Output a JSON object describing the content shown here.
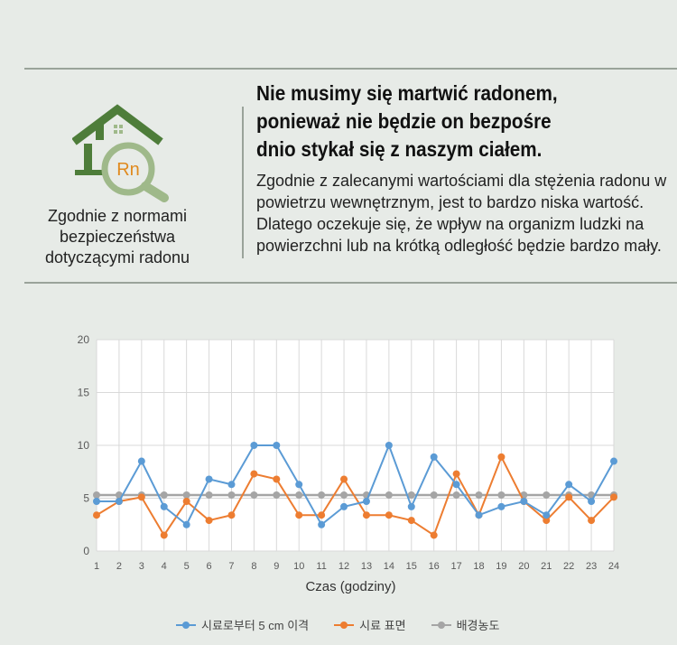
{
  "badge": {
    "icon_text": "Rn",
    "caption_lines": [
      "Zgodnie z normami",
      "bezpieczeństwa",
      "dotyczącymi radonu"
    ]
  },
  "headline": {
    "lines": [
      "Nie musimy się martwić radonem,",
      "ponieważ nie będzie on bezpośre",
      "dnio stykał się z naszym ciałem."
    ]
  },
  "body_text": "Zgodnie z zalecanymi wartościami dla stężenia radonu w powietrzu wewnętrznym, jest to bardzo niska wartość. Dlatego oczekuje się, że wpływ na organizm ludzki na powierzchni lub na krótką odległość będzie bardzo mały.",
  "colors": {
    "blue": "#5b9bd5",
    "orange": "#ed7d31",
    "gray": "#a5a5a5",
    "house_green": "#4e7d3a",
    "magnifier_green": "#9fb98a",
    "rn_orange": "#e08a1e"
  },
  "chart_data": {
    "type": "line",
    "x": [
      1,
      2,
      3,
      4,
      5,
      6,
      7,
      8,
      9,
      10,
      11,
      12,
      13,
      14,
      15,
      16,
      17,
      18,
      19,
      20,
      21,
      22,
      23,
      24
    ],
    "xlabel": "Czas (godziny)",
    "ylabel": "",
    "ylim": [
      0,
      20
    ],
    "yticks": [
      0,
      5,
      10,
      15,
      20
    ],
    "grid": true,
    "legend_position": "bottom",
    "series": [
      {
        "name": "시료로부터 5 cm 이격",
        "color": "#5b9bd5",
        "values": [
          4.7,
          4.7,
          8.5,
          4.2,
          2.5,
          6.8,
          6.3,
          10,
          10,
          6.3,
          2.5,
          4.2,
          4.7,
          10,
          4.2,
          8.9,
          6.3,
          3.4,
          4.2,
          4.7,
          3.4,
          6.3,
          4.7,
          8.5
        ]
      },
      {
        "name": "시료 표면",
        "color": "#ed7d31",
        "values": [
          3.4,
          4.7,
          5.1,
          1.5,
          4.7,
          2.9,
          3.4,
          7.3,
          6.8,
          3.4,
          3.4,
          6.8,
          3.4,
          3.4,
          2.9,
          1.5,
          7.3,
          3.4,
          8.9,
          4.7,
          2.9,
          5.1,
          2.9,
          5.1
        ]
      },
      {
        "name": "배경농도",
        "color": "#a5a5a5",
        "values": [
          5.3,
          5.3,
          5.3,
          5.3,
          5.3,
          5.3,
          5.3,
          5.3,
          5.3,
          5.3,
          5.3,
          5.3,
          5.3,
          5.3,
          5.3,
          5.3,
          5.3,
          5.3,
          5.3,
          5.3,
          5.3,
          5.3,
          5.3,
          5.3
        ]
      }
    ]
  }
}
